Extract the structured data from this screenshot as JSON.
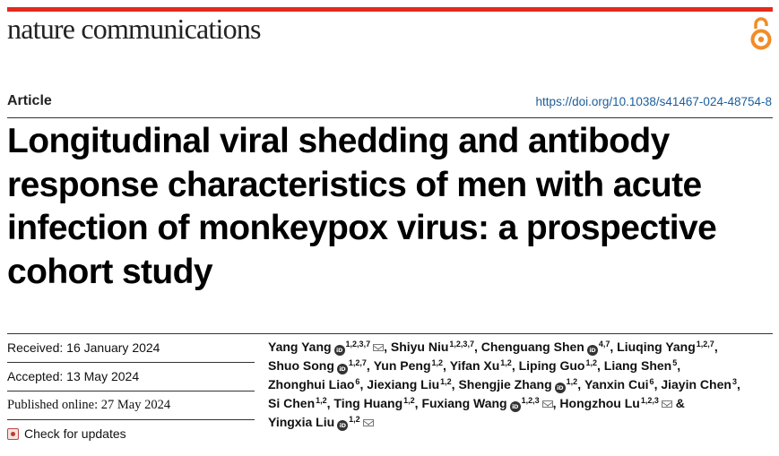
{
  "journal": {
    "name": "nature communications"
  },
  "article": {
    "type": "Article",
    "doi": "https://doi.org/10.1038/s41467-024-48754-8",
    "title": "Longitudinal viral shedding and antibody response characteristics of men with acute infection of monkeypox virus: a prospective cohort study"
  },
  "dates": [
    {
      "label": "Received:",
      "value": "16 January 2024"
    },
    {
      "label": "Accepted:",
      "value": "13 May 2024"
    },
    {
      "label": "Published online:",
      "value": "27 May 2024"
    }
  ],
  "check_updates": {
    "label": "Check for updates"
  },
  "orcid_text": "iD",
  "authors": [
    {
      "name": "Yang Yang",
      "orcid": true,
      "aff": "1,2,3,7",
      "email": true,
      "sep": ", "
    },
    {
      "name": "Shiyu Niu",
      "orcid": false,
      "aff": "1,2,3,7",
      "email": false,
      "sep": ", "
    },
    {
      "name": "Chenguang Shen",
      "orcid": true,
      "aff": "4,7",
      "email": false,
      "sep": ", "
    },
    {
      "name": "Liuqing Yang",
      "orcid": false,
      "aff": "1,2,7",
      "email": false,
      "sep": ", "
    },
    {
      "name": "Shuo Song",
      "orcid": true,
      "aff": "1,2,7",
      "email": false,
      "sep": ", "
    },
    {
      "name": "Yun Peng",
      "orcid": false,
      "aff": "1,2",
      "email": false,
      "sep": ", "
    },
    {
      "name": "Yifan Xu",
      "orcid": false,
      "aff": "1,2",
      "email": false,
      "sep": ", "
    },
    {
      "name": "Liping Guo",
      "orcid": false,
      "aff": "1,2",
      "email": false,
      "sep": ", "
    },
    {
      "name": "Liang Shen",
      "orcid": false,
      "aff": "5",
      "email": false,
      "sep": ", "
    },
    {
      "name": "Zhonghui Liao",
      "orcid": false,
      "aff": "6",
      "email": false,
      "sep": ", "
    },
    {
      "name": "Jiexiang Liu",
      "orcid": false,
      "aff": "1,2",
      "email": false,
      "sep": ", "
    },
    {
      "name": "Shengjie Zhang",
      "orcid": true,
      "aff": "1,2",
      "email": false,
      "sep": ", "
    },
    {
      "name": "Yanxin Cui",
      "orcid": false,
      "aff": "6",
      "email": false,
      "sep": ", "
    },
    {
      "name": "Jiayin Chen",
      "orcid": false,
      "aff": "3",
      "email": false,
      "sep": ", "
    },
    {
      "name": "Si Chen",
      "orcid": false,
      "aff": "1,2",
      "email": false,
      "sep": ", "
    },
    {
      "name": "Ting Huang",
      "orcid": false,
      "aff": "1,2",
      "email": false,
      "sep": ", "
    },
    {
      "name": "Fuxiang Wang",
      "orcid": true,
      "aff": "1,2,3",
      "email": true,
      "sep": ", "
    },
    {
      "name": "Hongzhou Lu",
      "orcid": false,
      "aff": "1,2,3",
      "email": true,
      "sep": " & "
    },
    {
      "name": "Yingxia Liu",
      "orcid": true,
      "aff": "1,2",
      "email": true,
      "sep": ""
    }
  ],
  "colors": {
    "accent_bar": "#e22b1c",
    "link": "#1b5e9c",
    "open_access": "#f28c28"
  }
}
